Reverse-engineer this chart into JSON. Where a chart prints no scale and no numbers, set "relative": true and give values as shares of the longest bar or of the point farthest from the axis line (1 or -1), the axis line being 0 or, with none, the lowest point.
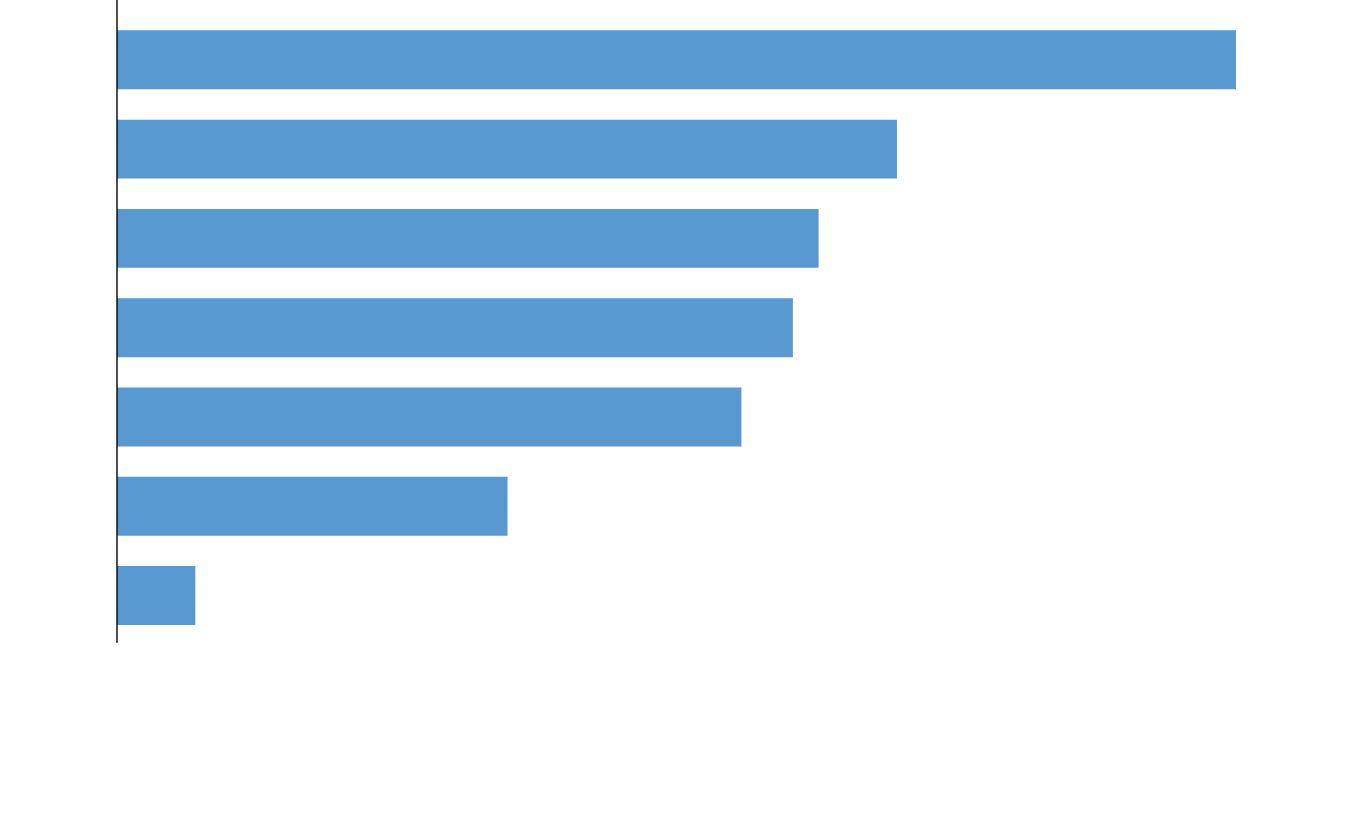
{
  "chart_data": {
    "type": "bar",
    "orientation": "horizontal",
    "relative": true,
    "categories": [
      null,
      null,
      null,
      null,
      null,
      null,
      null
    ],
    "values": [
      1,
      0.697,
      0.627,
      0.604,
      0.558,
      0.349,
      0.07
    ],
    "color": "#5799d0",
    "grid": false,
    "legend": false
  }
}
